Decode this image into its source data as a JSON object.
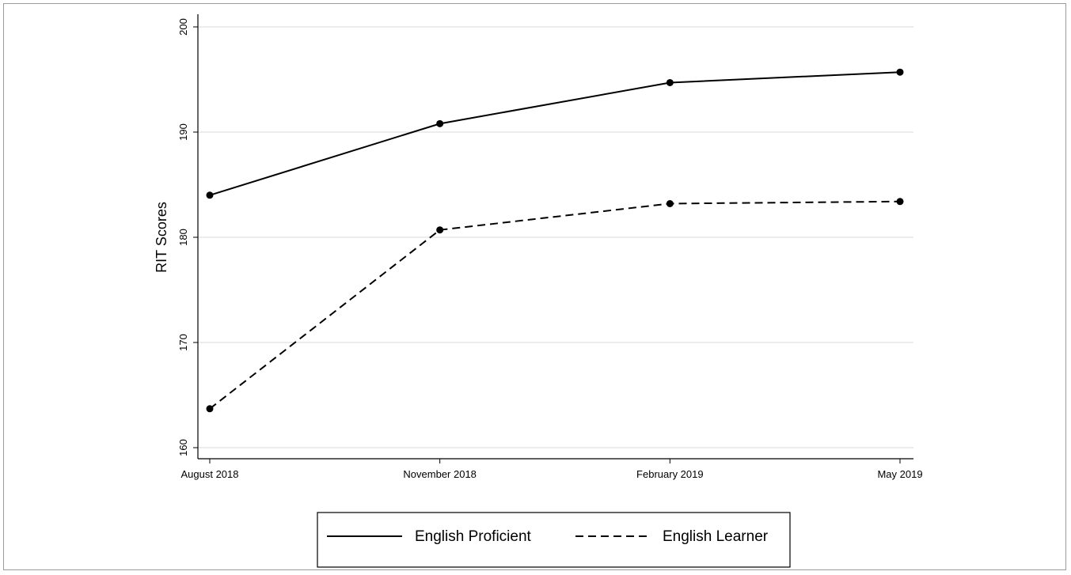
{
  "chart_data": {
    "type": "line",
    "categories": [
      "August 2018",
      "November 2018",
      "February 2019",
      "May 2019"
    ],
    "series": [
      {
        "name": "English Proficient",
        "values": [
          184.0,
          190.8,
          194.7,
          195.7
        ],
        "style": "solid"
      },
      {
        "name": "English Learner",
        "values": [
          163.7,
          180.7,
          183.2,
          183.4
        ],
        "style": "dashed"
      }
    ],
    "title": "",
    "xlabel": "",
    "ylabel": "RIT Scores",
    "ylim": [
      160,
      200
    ],
    "yticks": [
      "160",
      "170",
      "180",
      "190",
      "200"
    ],
    "grid": true,
    "legend_position": "bottom"
  },
  "colors": {
    "line": "#000000",
    "grid": "#e6e6e6",
    "frame": "#9a9a9a"
  }
}
